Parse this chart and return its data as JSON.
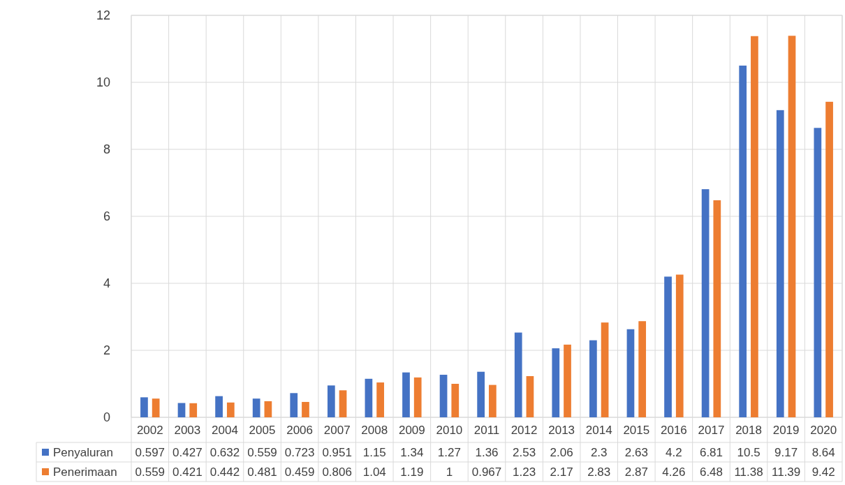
{
  "chart_data": {
    "type": "bar",
    "categories": [
      "2002",
      "2003",
      "2004",
      "2005",
      "2006",
      "2007",
      "2008",
      "2009",
      "2010",
      "2011",
      "2012",
      "2013",
      "2014",
      "2015",
      "2016",
      "2017",
      "2018",
      "2019",
      "2020"
    ],
    "series": [
      {
        "name": "Penyaluran",
        "color": "#4472c4",
        "values": [
          0.597,
          0.427,
          0.632,
          0.559,
          0.723,
          0.951,
          1.15,
          1.34,
          1.27,
          1.36,
          2.53,
          2.06,
          2.3,
          2.63,
          4.2,
          6.81,
          10.5,
          9.17,
          8.64
        ]
      },
      {
        "name": "Penerimaan",
        "color": "#ed7d31",
        "values": [
          0.559,
          0.421,
          0.442,
          0.481,
          0.459,
          0.806,
          1.04,
          1.19,
          1,
          0.967,
          1.23,
          2.17,
          2.83,
          2.87,
          4.26,
          6.48,
          11.38,
          11.39,
          9.42
        ]
      }
    ],
    "ylim": [
      0,
      12
    ],
    "yticks": [
      0,
      2,
      4,
      6,
      8,
      10,
      12
    ],
    "grid": true,
    "legend": "bottom",
    "data_labels": true
  }
}
